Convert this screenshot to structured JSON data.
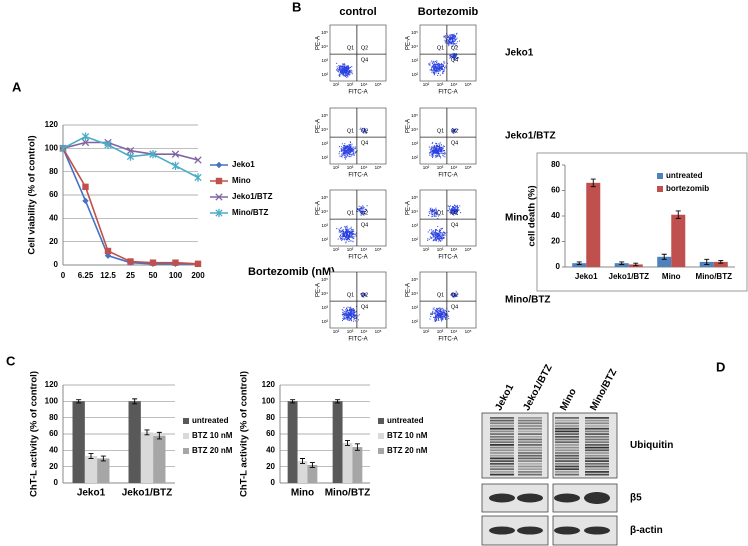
{
  "panel_labels": [
    "A",
    "B",
    "C",
    "D"
  ],
  "chart_data": [
    {
      "type": "line",
      "y_label": "Cell viability (% of control)",
      "x_label": "Bortezomib (nM)",
      "categories": [
        "0",
        "6.25",
        "12.5",
        "25",
        "50",
        "100",
        "200"
      ],
      "ylim": [
        0,
        120
      ],
      "yticks": [
        0,
        20,
        40,
        60,
        80,
        100,
        120
      ],
      "grid": true,
      "series": [
        {
          "name": "Jeko1",
          "color": "#4472c4",
          "marker": "diamond",
          "values": [
            100,
            55,
            8,
            2,
            1,
            1,
            1
          ]
        },
        {
          "name": "Mino",
          "color": "#c0504d",
          "marker": "square",
          "values": [
            100,
            67,
            12,
            3,
            2,
            2,
            1
          ]
        },
        {
          "name": "Jeko1/BTZ",
          "color": "#8064a2",
          "marker": "cross",
          "values": [
            100,
            105,
            105,
            98,
            95,
            95,
            90
          ]
        },
        {
          "name": "Mino/BTZ",
          "color": "#4bacc6",
          "marker": "star",
          "values": [
            100,
            110,
            103,
            93,
            95,
            85,
            75
          ]
        }
      ]
    },
    {
      "type": "bar",
      "y_label": "cell death (%)",
      "categories": [
        "Jeko1",
        "Jeko1/BTZ",
        "Mino",
        "Mino/BTZ"
      ],
      "ylim": [
        0,
        80
      ],
      "yticks": [
        0,
        20,
        40,
        60,
        80
      ],
      "grid": false,
      "series": [
        {
          "name": "untreated",
          "color": "#4f81bd",
          "values": [
            3,
            3,
            8,
            4
          ],
          "errors": [
            1,
            1,
            2,
            2
          ]
        },
        {
          "name": "bortezomib",
          "color": "#c0504d",
          "values": [
            66,
            2,
            41,
            4
          ],
          "errors": [
            3,
            1,
            3,
            1
          ]
        }
      ]
    },
    {
      "type": "bar",
      "y_label": "ChT-L activity (% of control)",
      "categories": [
        "Jeko1",
        "Jeko1/BTZ"
      ],
      "ylim": [
        0,
        120
      ],
      "yticks": [
        0,
        20,
        40,
        60,
        80,
        100,
        120
      ],
      "grid": true,
      "series": [
        {
          "name": "untreated",
          "color": "#595959",
          "values": [
            100,
            100
          ],
          "errors": [
            2,
            3
          ]
        },
        {
          "name": "BTZ 10 nM",
          "color": "#d9d9d9",
          "values": [
            33,
            62
          ],
          "errors": [
            3,
            3
          ]
        },
        {
          "name": "BTZ 20 nM",
          "color": "#a6a6a6",
          "values": [
            30,
            58
          ],
          "errors": [
            3,
            4
          ]
        }
      ]
    },
    {
      "type": "bar",
      "y_label": "ChT-L activity (% of control)",
      "categories": [
        "Mino",
        "Mino/BTZ"
      ],
      "ylim": [
        0,
        120
      ],
      "yticks": [
        0,
        20,
        40,
        60,
        80,
        100,
        120
      ],
      "grid": true,
      "series": [
        {
          "name": "untreated",
          "color": "#595959",
          "values": [
            100,
            100
          ],
          "errors": [
            2,
            2
          ]
        },
        {
          "name": "BTZ 10 nM",
          "color": "#d9d9d9",
          "values": [
            27,
            49
          ],
          "errors": [
            3,
            3
          ]
        },
        {
          "name": "BTZ 20 nM",
          "color": "#a6a6a6",
          "values": [
            22,
            44
          ],
          "errors": [
            3,
            4
          ]
        }
      ]
    }
  ],
  "flow": {
    "columns": [
      "control",
      "Bortezomib"
    ],
    "rows": [
      "Jeko1",
      "Jeko1/BTZ",
      "Mino",
      "Mino/BTZ"
    ],
    "y_axis": "PE-A",
    "x_axis": "FITC-A",
    "quadrants": [
      "Q1",
      "Q2",
      "Q4"
    ],
    "ticks": [
      "10²",
      "10³",
      "10⁴",
      "10⁵"
    ]
  },
  "blot": {
    "lanes": [
      "Jeko1",
      "Jeko1/BTZ",
      "Mino",
      "Mino/BTZ"
    ],
    "bands": [
      "Ubiquitin",
      "β5",
      "β-actin"
    ]
  }
}
